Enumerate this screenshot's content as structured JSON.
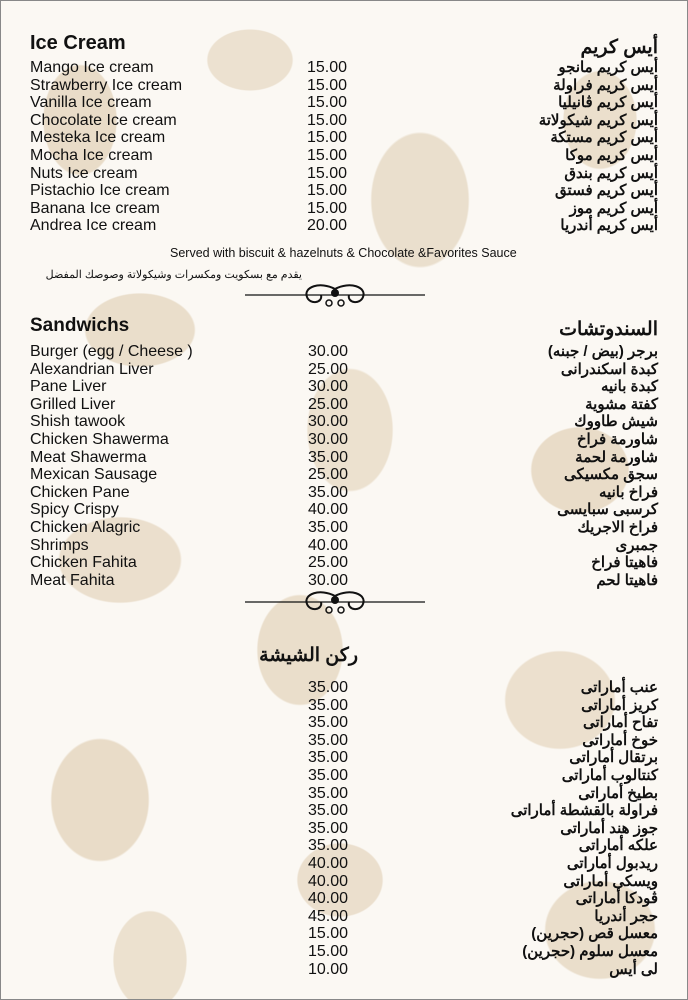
{
  "ice_cream": {
    "title_en": "Ice Cream",
    "title_ar": "أيس كريم",
    "items": [
      {
        "en": "Mango Ice cream",
        "price": "15.00",
        "ar": "أيس كريم مانجو"
      },
      {
        "en": "Strawberry Ice cream",
        "price": "15.00",
        "ar": "أيس كريم فراولة"
      },
      {
        "en": "Vanilla Ice cream",
        "price": "15.00",
        "ar": "أيس كريم ڤانيليا"
      },
      {
        "en": "Chocolate Ice cream",
        "price": "15.00",
        "ar": "أيس كريم شيكولاتة"
      },
      {
        "en": "Mesteka Ice cream",
        "price": "15.00",
        "ar": "أيس كريم مستكة"
      },
      {
        "en": "Mocha Ice cream",
        "price": "15.00",
        "ar": "أيس كريم موكا"
      },
      {
        "en": "Nuts Ice cream",
        "price": "15.00",
        "ar": "أيس كريم بندق"
      },
      {
        "en": "Pistachio Ice cream",
        "price": "15.00",
        "ar": "أيس كريم فستق"
      },
      {
        "en": "Banana Ice cream",
        "price": "15.00",
        "ar": "أيس كريم موز"
      },
      {
        "en": "Andrea Ice cream",
        "price": "20.00",
        "ar": "أيس كريم أندريا"
      }
    ],
    "note_en": "Served with biscuit & hazelnuts & Chocolate &Favorites Sauce",
    "note_ar": "يقدم مع بسكويت ومكسرات وشيكولاتة وصوصك المفضل"
  },
  "sandwiches": {
    "title_en": "Sandwichs",
    "title_ar": "السندوتشات",
    "items": [
      {
        "en": "Burger (egg / Cheese )",
        "price": "30.00",
        "ar": "برجر (بيض / جبنه)"
      },
      {
        "en": "Alexandrian Liver",
        "price": "25.00",
        "ar": "كبدة اسكندرانى"
      },
      {
        "en": "Pane Liver",
        "price": "30.00",
        "ar": "كبدة بانيه"
      },
      {
        "en": "Grilled Liver",
        "price": "25.00",
        "ar": "كفتة مشوية"
      },
      {
        "en": "Shish tawook",
        "price": "30.00",
        "ar": "شيش طاووك"
      },
      {
        "en": "Chicken Shawerma",
        "price": "30.00",
        "ar": "شاورمة فراخ"
      },
      {
        "en": "Meat Shawerma",
        "price": "35.00",
        "ar": "شاورمة لحمة"
      },
      {
        "en": "Mexican Sausage",
        "price": "25.00",
        "ar": "سجق مكسيكى"
      },
      {
        "en": "Chicken Pane",
        "price": "35.00",
        "ar": "فراخ بانيه"
      },
      {
        "en": "Spicy Crispy",
        "price": "40.00",
        "ar": "كرسبى سبايسى"
      },
      {
        "en": "Chicken Alagric",
        "price": "35.00",
        "ar": "فراخ الاجريك"
      },
      {
        "en": "Shrimps",
        "price": "40.00",
        "ar": "جمبرى"
      },
      {
        "en": "Chicken Fahita",
        "price": "25.00",
        "ar": "فاهيتا فراخ"
      },
      {
        "en": "Meat Fahita",
        "price": "30.00",
        "ar": "فاهيتا لحم"
      }
    ]
  },
  "shisha": {
    "title_ar": "ركن الشيشة",
    "items": [
      {
        "price": "35.00",
        "ar": "عنب أماراتى"
      },
      {
        "price": "35.00",
        "ar": "كريز أماراتى"
      },
      {
        "price": "35.00",
        "ar": "تفاح أماراتى"
      },
      {
        "price": "35.00",
        "ar": "خوخ أماراتى"
      },
      {
        "price": "35.00",
        "ar": "برتقال أماراتى"
      },
      {
        "price": "35.00",
        "ar": "كنتالوب أماراتى"
      },
      {
        "price": "35.00",
        "ar": "بطيخ أماراتى"
      },
      {
        "price": "35.00",
        "ar": "فراولة بالقشطة أماراتى"
      },
      {
        "price": "35.00",
        "ar": "جوز هند أماراتى"
      },
      {
        "price": "35.00",
        "ar": "علكه أماراتى"
      },
      {
        "price": "40.00",
        "ar": "ريدبول أماراتى"
      },
      {
        "price": "40.00",
        "ar": "ويسكى أماراتى"
      },
      {
        "price": "40.00",
        "ar": "ڤودكا أماراتى"
      },
      {
        "price": "45.00",
        "ar": "حجر أندريا"
      },
      {
        "price": "15.00",
        "ar": "معسل قص (حجرين)"
      },
      {
        "price": "15.00",
        "ar": "معسل سلوم (حجرين)"
      },
      {
        "price": "10.00",
        "ar": "لى أيس"
      }
    ]
  },
  "colors": {
    "pattern": "#e9dcc8",
    "text": "#111111"
  }
}
